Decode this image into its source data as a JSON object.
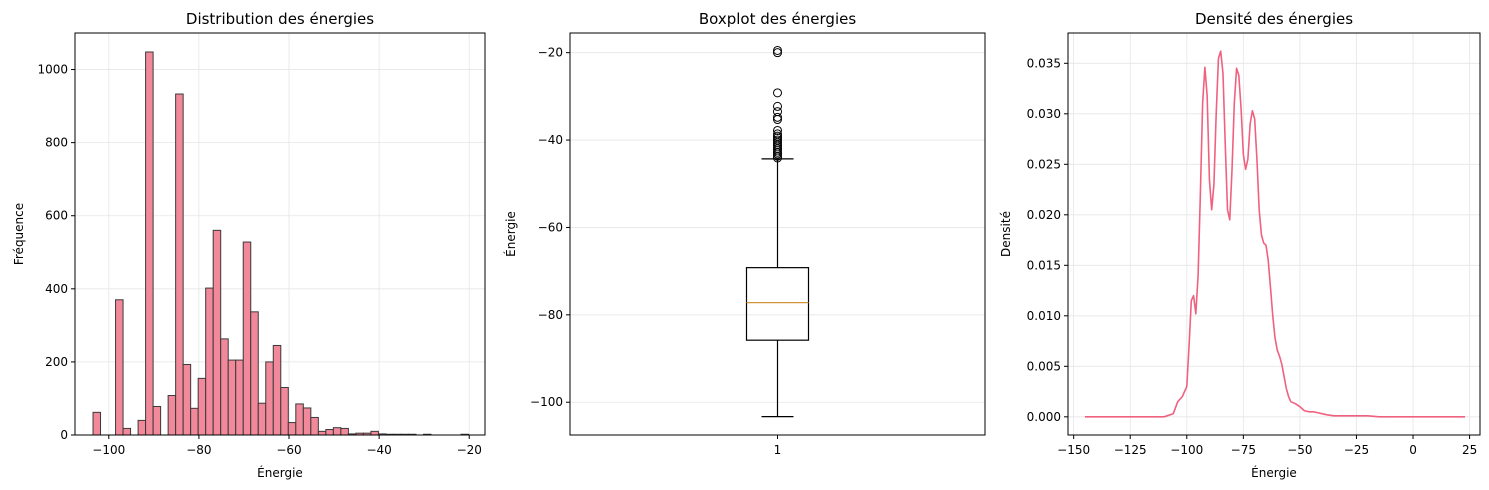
{
  "chart_data": [
    {
      "type": "histogram",
      "title": "Distribution des énergies",
      "xlabel": "Énergie",
      "ylabel": "Fréquence",
      "xlim": [
        -107.5,
        -16.5
      ],
      "ylim": [
        0,
        1100
      ],
      "xticks": [
        -100,
        -80,
        -60,
        -40,
        -20
      ],
      "yticks": [
        0,
        200,
        400,
        600,
        800,
        1000
      ],
      "grid": true,
      "bar_color": "#f2899b",
      "edge_color": "#3a3a3a",
      "bin_start": -103.5,
      "bin_width": 1.667,
      "values": [
        62,
        0,
        0,
        370,
        18,
        0,
        40,
        1048,
        78,
        0,
        108,
        933,
        193,
        73,
        155,
        402,
        560,
        263,
        205,
        205,
        528,
        337,
        87,
        200,
        245,
        130,
        34,
        85,
        74,
        48,
        10,
        15,
        20,
        18,
        3,
        5,
        5,
        10,
        3,
        2,
        2,
        2,
        2,
        0,
        2,
        0,
        0,
        0,
        0,
        2
      ]
    },
    {
      "type": "boxplot",
      "title": "Boxplot des énergies",
      "xlabel": "",
      "ylabel": "Énergie",
      "xticks": [
        "1"
      ],
      "ylim": [
        -107.5,
        -15.5
      ],
      "yticks": [
        -100,
        -80,
        -60,
        -40,
        -20
      ],
      "grid": true,
      "q1": -85.8,
      "median": -77.2,
      "q3": -69.2,
      "whisker_low": -103.3,
      "whisker_high": -44.3,
      "median_color": "#d4943a",
      "outliers": [
        -19.5,
        -20.0,
        -29.2,
        -32.3,
        -33.5,
        -34.8,
        -35.3,
        -37.8,
        -38.6,
        -39.1,
        -39.5,
        -40.0,
        -40.5,
        -41.0,
        -41.4,
        -41.9,
        -42.3,
        -42.8,
        -43.2,
        -43.7,
        -44.1
      ]
    },
    {
      "type": "line",
      "title": "Densité des énergies",
      "xlabel": "Énergie",
      "ylabel": "Densité",
      "xlim": [
        -152.5,
        29.6
      ],
      "ylim": [
        -0.0018,
        0.038
      ],
      "xticks": [
        -150,
        -125,
        -100,
        -75,
        -50,
        -25,
        0,
        25
      ],
      "yticks": [
        "0.000",
        "0.005",
        "0.010",
        "0.015",
        "0.020",
        "0.025",
        "0.030",
        "0.035"
      ],
      "grid": true,
      "line_color": "#f0617f",
      "x": [
        -145,
        -120,
        -110,
        -106,
        -104,
        -102,
        -100,
        -99,
        -98,
        -97,
        -96,
        -95,
        -94,
        -93,
        -92,
        -91,
        -90,
        -89,
        -88,
        -87,
        -86,
        -85,
        -84,
        -83,
        -82,
        -81,
        -80,
        -79,
        -78,
        -77,
        -76,
        -75,
        -74,
        -73,
        -72,
        -71,
        -70,
        -69,
        -68,
        -67,
        -66,
        -65,
        -64,
        -63,
        -62,
        -61,
        -60,
        -59,
        -58,
        -57,
        -56,
        -55,
        -54,
        -53,
        -52,
        -50,
        -48,
        -46,
        -44,
        -42,
        -40,
        -38,
        -35,
        -30,
        -25,
        -20,
        -15,
        -10,
        0,
        10,
        23
      ],
      "y": [
        0.0,
        0.0,
        0.0,
        0.0003,
        0.0015,
        0.002,
        0.003,
        0.007,
        0.0115,
        0.012,
        0.0102,
        0.014,
        0.022,
        0.031,
        0.0346,
        0.0318,
        0.0235,
        0.0205,
        0.023,
        0.03,
        0.0355,
        0.0362,
        0.034,
        0.027,
        0.0205,
        0.0195,
        0.0245,
        0.031,
        0.0345,
        0.0338,
        0.0305,
        0.026,
        0.0245,
        0.0255,
        0.029,
        0.0303,
        0.0295,
        0.0255,
        0.0205,
        0.018,
        0.0172,
        0.017,
        0.0155,
        0.0128,
        0.01,
        0.0078,
        0.0066,
        0.006,
        0.0052,
        0.004,
        0.0028,
        0.002,
        0.0015,
        0.0014,
        0.0013,
        0.001,
        0.0006,
        0.0005,
        0.0005,
        0.0004,
        0.0003,
        0.0002,
        0.0001,
        0.0001,
        0.0001,
        0.0001,
        0.0,
        0.0,
        0.0,
        0.0,
        0.0
      ]
    }
  ]
}
